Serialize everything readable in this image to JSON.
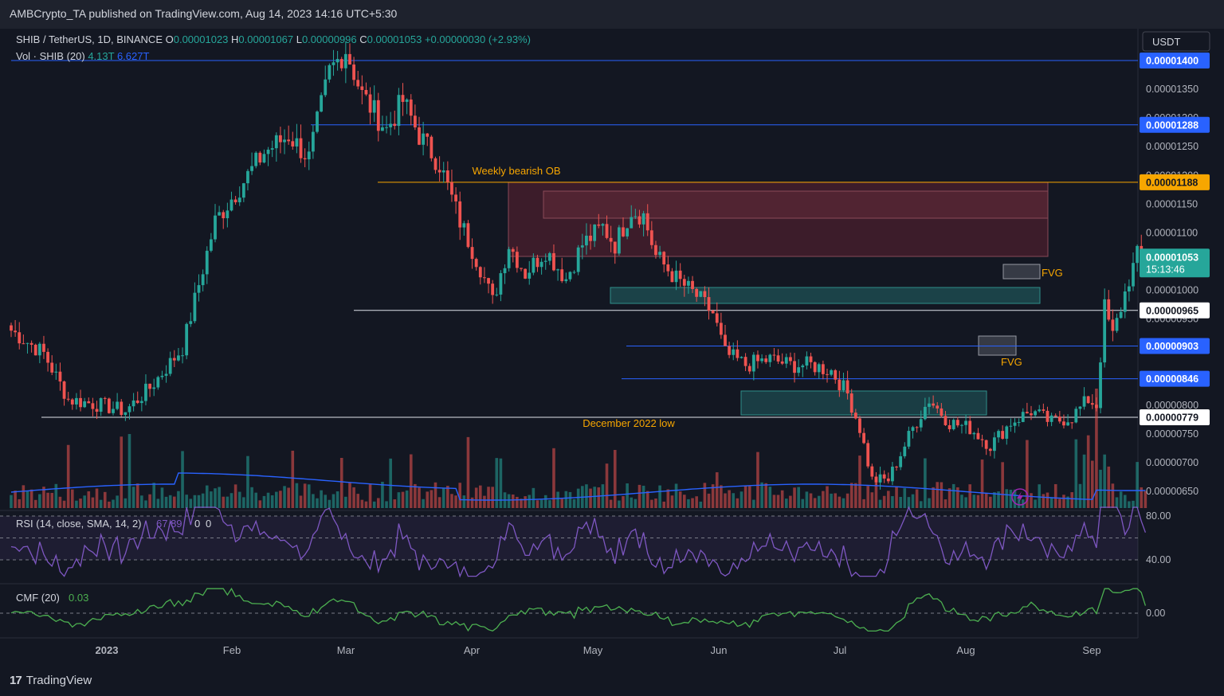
{
  "header": {
    "publisher_line": "AMBCrypto_TA published on TradingView.com, Aug 14, 2023 14:16 UTC+5:30"
  },
  "legend": {
    "symbol": "SHIB / TetherUS, 1D, BINANCE",
    "o_label": "O",
    "o": "0.00001023",
    "h_label": "H",
    "h": "0.00001067",
    "l_label": "L",
    "l": "0.00000996",
    "c_label": "C",
    "c": "0.00001053",
    "change": "+0.00000030 (+2.93%)",
    "vol_label": "Vol · SHIB (20)",
    "vol_value": "4.13T",
    "vol_ma": "6.627T"
  },
  "currency": "USDT",
  "colors": {
    "up": "#26a69a",
    "down": "#ef5350",
    "bg": "#131722",
    "level_blue": "#2962ff",
    "orange": "#f7a600",
    "rsi": "#7e57c2",
    "cmf": "#4caf50"
  },
  "chart_data": [
    {
      "type": "candlestick",
      "title": "SHIB / TetherUS, 1D, BINANCE",
      "x_ticks": [
        "2023",
        "Feb",
        "Mar",
        "Apr",
        "May",
        "Jun",
        "Jul",
        "Aug",
        "Sep"
      ],
      "y_ticks": [
        "0.00001400",
        "0.00001350",
        "0.00001300",
        "0.00001250",
        "0.00001200",
        "0.00001150",
        "0.00001100",
        "0.00001050",
        "0.00001000",
        "0.00000950",
        "0.00000900",
        "0.00000850",
        "0.00000800",
        "0.00000750",
        "0.00000700",
        "0.00000650"
      ],
      "ylim": [
        6.2e-06,
        1.45e-05
      ],
      "last_price": "0.00001053",
      "countdown": "15:13:46",
      "levels": [
        {
          "label": "0.00001400",
          "value": 1.4e-05,
          "color": "blue"
        },
        {
          "label": "0.00001288",
          "value": 1.288e-05,
          "color": "blue"
        },
        {
          "label": "0.00001188",
          "value": 1.188e-05,
          "color": "orange"
        },
        {
          "label": "0.00000965",
          "value": 9.65e-06,
          "color": "white"
        },
        {
          "label": "0.00000903",
          "value": 9.03e-06,
          "color": "blue"
        },
        {
          "label": "0.00000846",
          "value": 8.46e-06,
          "color": "blue"
        },
        {
          "label": "0.00000779",
          "value": 7.79e-06,
          "color": "white"
        }
      ],
      "annotations": [
        {
          "text": "Weekly bearish OB"
        },
        {
          "text": "December 2022 low"
        },
        {
          "text": "FVG"
        },
        {
          "text": "FVG"
        }
      ],
      "anchors": [
        [
          0,
          9.3e-06
        ],
        [
          8,
          8.9e-06
        ],
        [
          14,
          8.1e-06
        ],
        [
          22,
          8e-06
        ],
        [
          28,
          7.9e-06
        ],
        [
          34,
          8.3e-06
        ],
        [
          42,
          9e-06
        ],
        [
          50,
          1.12e-05
        ],
        [
          56,
          1.18e-05
        ],
        [
          62,
          1.24e-05
        ],
        [
          68,
          1.27e-05
        ],
        [
          73,
          1.23e-05
        ],
        [
          78,
          1.38e-05
        ],
        [
          82,
          1.42e-05
        ],
        [
          86,
          1.34e-05
        ],
        [
          92,
          1.28e-05
        ],
        [
          96,
          1.33e-05
        ],
        [
          100,
          1.27e-05
        ],
        [
          105,
          1.22e-05
        ],
        [
          110,
          1.12e-05
        ],
        [
          115,
          1.04e-05
        ],
        [
          118,
          9.8e-06
        ],
        [
          122,
          1.08e-05
        ],
        [
          126,
          1.03e-05
        ],
        [
          131,
          1.07e-05
        ],
        [
          136,
          1.02e-05
        ],
        [
          140,
          1.08e-05
        ],
        [
          145,
          1.11e-05
        ],
        [
          148,
          1.08e-05
        ],
        [
          152,
          1.14e-05
        ],
        [
          155,
          1.13e-05
        ],
        [
          158,
          1.06e-05
        ],
        [
          163,
          1.02e-05
        ],
        [
          168,
          9.9e-06
        ],
        [
          172,
          9.6e-06
        ],
        [
          175,
          8.9e-06
        ],
        [
          180,
          8.7e-06
        ],
        [
          186,
          8.8e-06
        ],
        [
          191,
          8.7e-06
        ],
        [
          196,
          8.7e-06
        ],
        [
          201,
          8.6e-06
        ],
        [
          205,
          8.2e-06
        ],
        [
          208,
          7.6e-06
        ],
        [
          211,
          6.7e-06
        ],
        [
          215,
          6.7e-06
        ],
        [
          221,
          7.6e-06
        ],
        [
          225,
          8.1e-06
        ],
        [
          230,
          7.7e-06
        ],
        [
          235,
          7.6e-06
        ],
        [
          240,
          7.3e-06
        ],
        [
          245,
          7.7e-06
        ],
        [
          250,
          7.9e-06
        ],
        [
          255,
          7.7e-06
        ],
        [
          260,
          7.8e-06
        ],
        [
          264,
          8.1e-06
        ],
        [
          266,
          8e-06
        ],
        [
          268,
          9.7e-06
        ],
        [
          270,
          9.2e-06
        ],
        [
          272,
          9.7e-06
        ],
        [
          274,
          1.02e-05
        ],
        [
          276,
          1.06e-05
        ],
        [
          278,
          1.053e-05
        ]
      ],
      "volume_ma_note": "Vol (20) MA"
    },
    {
      "type": "line",
      "title": "RSI (14, close, SMA, 14, 2)",
      "legend_value": "67.89",
      "extra_values": [
        "0",
        "0"
      ],
      "y_ticks": [
        "80.00",
        "40.00"
      ],
      "ylim": [
        20,
        90
      ]
    },
    {
      "type": "line",
      "title": "CMF (20)",
      "legend_value": "0.03",
      "y_ticks": [
        "0.00"
      ],
      "ylim": [
        -0.25,
        0.25
      ]
    }
  ],
  "footer": {
    "brand": "TradingView"
  }
}
